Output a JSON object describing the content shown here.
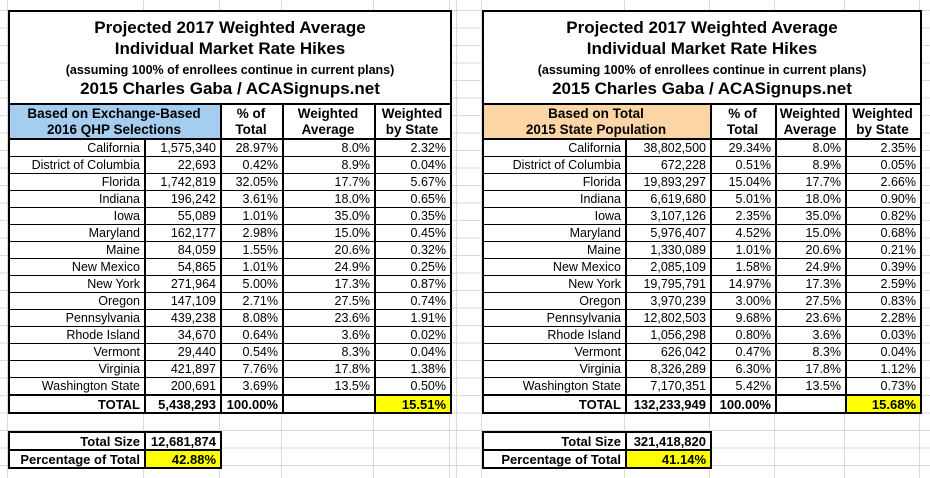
{
  "colors": {
    "highlight": "#FFFF00",
    "left_header_bg": "#A5CDF0",
    "right_header_bg": "#FBD5A6"
  },
  "tables": [
    {
      "title_line1": "Projected 2017 Weighted Average",
      "title_line2": "Individual Market Rate Hikes",
      "subtitle": "(assuming 100% of enrollees continue in current plans)",
      "byline": "2015 Charles Gaba / ACASignups.net",
      "basis": "Based on Exchange-Based\n2016 QHP Selections",
      "col_pct": "% of\nTotal",
      "col_weighted_avg": "Weighted\nAverage",
      "col_weighted_state": "Weighted\nby State",
      "header_bg": "#A5CDF0",
      "rows": [
        [
          "California",
          "1,575,340",
          "28.97%",
          "8.0%",
          "2.32%"
        ],
        [
          "District of Columbia",
          "22,693",
          "0.42%",
          "8.9%",
          "0.04%"
        ],
        [
          "Florida",
          "1,742,819",
          "32.05%",
          "17.7%",
          "5.67%"
        ],
        [
          "Indiana",
          "196,242",
          "3.61%",
          "18.0%",
          "0.65%"
        ],
        [
          "Iowa",
          "55,089",
          "1.01%",
          "35.0%",
          "0.35%"
        ],
        [
          "Maryland",
          "162,177",
          "2.98%",
          "15.0%",
          "0.45%"
        ],
        [
          "Maine",
          "84,059",
          "1.55%",
          "20.6%",
          "0.32%"
        ],
        [
          "New Mexico",
          "54,865",
          "1.01%",
          "24.9%",
          "0.25%"
        ],
        [
          "New York",
          "271,964",
          "5.00%",
          "17.3%",
          "0.87%"
        ],
        [
          "Oregon",
          "147,109",
          "2.71%",
          "27.5%",
          "0.74%"
        ],
        [
          "Pennsylvania",
          "439,238",
          "8.08%",
          "23.6%",
          "1.91%"
        ],
        [
          "Rhode Island",
          "34,670",
          "0.64%",
          "3.6%",
          "0.02%"
        ],
        [
          "Vermont",
          "29,440",
          "0.54%",
          "8.3%",
          "0.04%"
        ],
        [
          "Virginia",
          "421,897",
          "7.76%",
          "17.8%",
          "1.38%"
        ],
        [
          "Washington State",
          "200,691",
          "3.69%",
          "13.5%",
          "0.50%"
        ]
      ],
      "total": {
        "label": "TOTAL",
        "value": "5,438,293",
        "pct_of_total": "100.00%",
        "weighted_by_state": "15.51%"
      },
      "summary": {
        "total_size_label": "Total Size",
        "total_size_value": "12,681,874",
        "pct_label": "Percentage of Total",
        "pct_value": "42.88%"
      }
    },
    {
      "title_line1": "Projected 2017 Weighted Average",
      "title_line2": "Individual Market Rate Hikes",
      "subtitle": "(assuming 100% of enrollees continue in current plans)",
      "byline": "2015 Charles Gaba / ACASignups.net",
      "basis": "Based on Total\n2015 State Population",
      "col_pct": "% of\nTotal",
      "col_weighted_avg": "Weighted\nAverage",
      "col_weighted_state": "Weighted\nby State",
      "header_bg": "#FBD5A6",
      "rows": [
        [
          "California",
          "38,802,500",
          "29.34%",
          "8.0%",
          "2.35%"
        ],
        [
          "District of Columbia",
          "672,228",
          "0.51%",
          "8.9%",
          "0.05%"
        ],
        [
          "Florida",
          "19,893,297",
          "15.04%",
          "17.7%",
          "2.66%"
        ],
        [
          "Indiana",
          "6,619,680",
          "5.01%",
          "18.0%",
          "0.90%"
        ],
        [
          "Iowa",
          "3,107,126",
          "2.35%",
          "35.0%",
          "0.82%"
        ],
        [
          "Maryland",
          "5,976,407",
          "4.52%",
          "15.0%",
          "0.68%"
        ],
        [
          "Maine",
          "1,330,089",
          "1.01%",
          "20.6%",
          "0.21%"
        ],
        [
          "New Mexico",
          "2,085,109",
          "1.58%",
          "24.9%",
          "0.39%"
        ],
        [
          "New York",
          "19,795,791",
          "14.97%",
          "17.3%",
          "2.59%"
        ],
        [
          "Oregon",
          "3,970,239",
          "3.00%",
          "27.5%",
          "0.83%"
        ],
        [
          "Pennsylvania",
          "12,802,503",
          "9.68%",
          "23.6%",
          "2.28%"
        ],
        [
          "Rhode Island",
          "1,056,298",
          "0.80%",
          "3.6%",
          "0.03%"
        ],
        [
          "Vermont",
          "626,042",
          "0.47%",
          "8.3%",
          "0.04%"
        ],
        [
          "Virginia",
          "8,326,289",
          "6.30%",
          "17.8%",
          "1.12%"
        ],
        [
          "Washington State",
          "7,170,351",
          "5.42%",
          "13.5%",
          "0.73%"
        ]
      ],
      "total": {
        "label": "TOTAL",
        "value": "132,233,949",
        "pct_of_total": "100.00%",
        "weighted_by_state": "15.68%"
      },
      "summary": {
        "total_size_label": "Total Size",
        "total_size_value": "321,418,820",
        "pct_label": "Percentage of Total",
        "pct_value": "41.14%"
      }
    }
  ]
}
